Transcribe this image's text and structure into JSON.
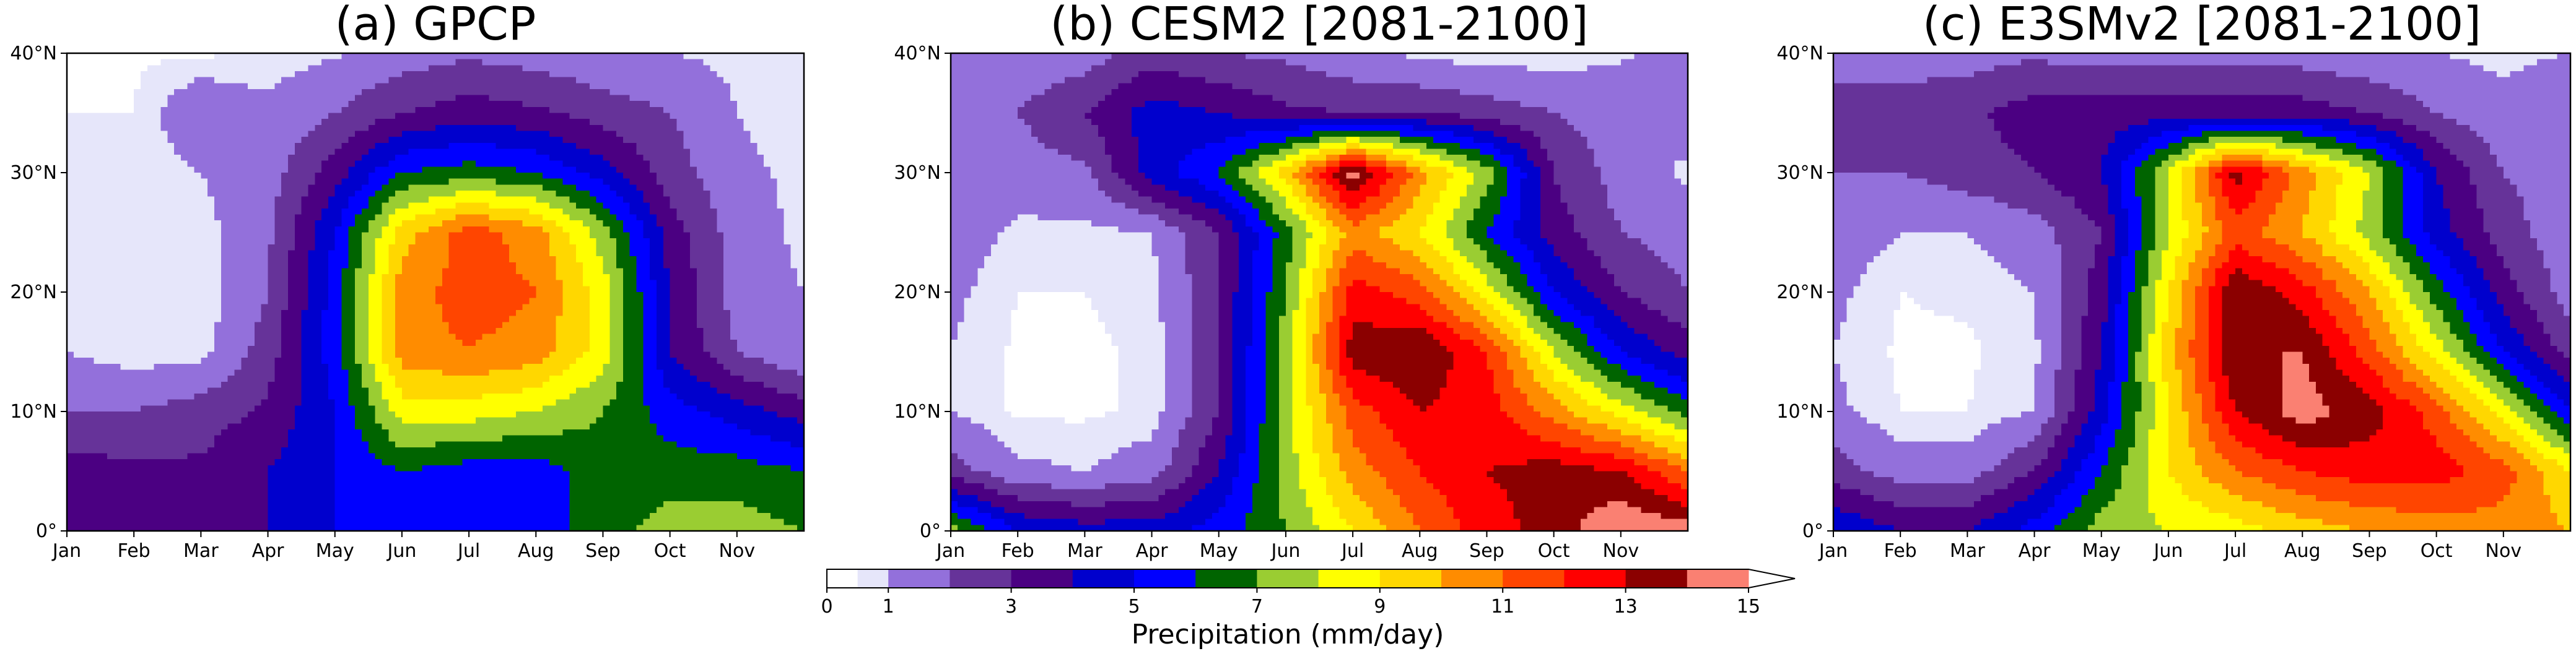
{
  "colorbar": {
    "label": "Precipitation (mm/day)",
    "levels": [
      0,
      0.5,
      1,
      2,
      3,
      4,
      5,
      6,
      7,
      8,
      9,
      10,
      11,
      12,
      13,
      14,
      15
    ],
    "tick_values": [
      0,
      1,
      3,
      5,
      7,
      9,
      11,
      13,
      15
    ],
    "tick_labels": [
      "0",
      "1",
      "3",
      "5",
      "7",
      "9",
      "11",
      "13",
      "15"
    ],
    "colors": [
      "#ffffff",
      "#e6e6fa",
      "#9370db",
      "#663399",
      "#4b0082",
      "#0000cd",
      "#0000ff",
      "#006400",
      "#9acd32",
      "#ffff00",
      "#ffd700",
      "#ff8c00",
      "#ff4500",
      "#ff0000",
      "#8b0000",
      "#fa8072"
    ],
    "extend": "max"
  },
  "chart_data": [
    {
      "type": "heatmap",
      "title": "(a) GPCP",
      "x_tick_labels": [
        "Jan",
        "Feb",
        "Mar",
        "Apr",
        "May",
        "Jun",
        "Jul",
        "Aug",
        "Sep",
        "Oct",
        "Nov"
      ],
      "y_tick_labels": [
        "0°",
        "10°N",
        "20°N",
        "30°N",
        "40°N"
      ],
      "y_tick_values": [
        0,
        10,
        20,
        30,
        40
      ],
      "xlim": [
        1,
        12
      ],
      "ylim": [
        0,
        40
      ],
      "months": [
        1,
        2,
        3,
        4,
        5,
        6,
        7,
        8,
        9,
        10,
        11,
        12
      ],
      "latitudes": [
        0,
        5,
        10,
        15,
        20,
        25,
        30,
        35,
        40
      ],
      "values": [
        [
          4.0,
          3.2,
          3.2,
          4.0,
          5.0,
          5.5,
          5.5,
          5.5,
          6.5,
          7.5,
          7.5,
          7.0
        ],
        [
          3.5,
          3.2,
          3.2,
          4.0,
          5.0,
          6.0,
          5.5,
          5.5,
          6.5,
          6.5,
          6.5,
          6.0
        ],
        [
          2.0,
          2.0,
          2.5,
          3.2,
          5.0,
          8.5,
          8.5,
          8.0,
          7.0,
          5.5,
          4.5,
          3.5
        ],
        [
          1.0,
          0.6,
          0.7,
          2.5,
          5.5,
          10.5,
          11.0,
          10.5,
          8.5,
          4.0,
          2.0,
          1.0
        ],
        [
          0.8,
          0.5,
          0.5,
          2.0,
          5.5,
          10.5,
          11.5,
          11.0,
          8.5,
          4.0,
          1.5,
          1.0
        ],
        [
          0.8,
          0.5,
          0.7,
          1.8,
          5.0,
          9.5,
          11.5,
          10.5,
          7.5,
          3.5,
          1.5,
          0.8
        ],
        [
          0.8,
          0.6,
          1.0,
          1.5,
          3.5,
          6.0,
          6.5,
          6.0,
          4.5,
          2.5,
          1.2,
          0.8
        ],
        [
          0.5,
          0.5,
          1.8,
          1.2,
          2.0,
          3.0,
          3.5,
          3.2,
          2.5,
          2.0,
          1.0,
          0.6
        ],
        [
          0.4,
          0.4,
          0.4,
          0.6,
          0.9,
          1.5,
          1.8,
          1.5,
          1.2,
          1.0,
          0.8,
          0.6
        ]
      ]
    },
    {
      "type": "heatmap",
      "title": "(b) CESM2 [2081-2100]",
      "x_tick_labels": [
        "Jan",
        "Feb",
        "Mar",
        "Apr",
        "May",
        "Jun",
        "Jul",
        "Aug",
        "Sep",
        "Oct",
        "Nov"
      ],
      "y_tick_labels": [
        "0°",
        "10°N",
        "20°N",
        "30°N",
        "40°N"
      ],
      "y_tick_values": [
        0,
        10,
        20,
        30,
        40
      ],
      "xlim": [
        1,
        12
      ],
      "ylim": [
        0,
        40
      ],
      "months": [
        1,
        2,
        3,
        4,
        5,
        6,
        7,
        8,
        9,
        10,
        11,
        12
      ],
      "latitudes": [
        0,
        5,
        10,
        15,
        20,
        25,
        30,
        35,
        40
      ],
      "values": [
        [
          7.5,
          5.0,
          4.5,
          4.5,
          5.5,
          7.0,
          9.0,
          11.0,
          12.5,
          13.5,
          15.0,
          14.5
        ],
        [
          2.5,
          1.2,
          1.0,
          1.5,
          4.0,
          7.5,
          10.5,
          12.0,
          13.0,
          13.5,
          13.0,
          11.0
        ],
        [
          1.0,
          0.4,
          0.4,
          0.6,
          3.0,
          7.5,
          11.5,
          13.0,
          12.5,
          10.5,
          8.5,
          6.5
        ],
        [
          1.0,
          0.4,
          0.4,
          0.6,
          3.0,
          7.5,
          13.5,
          14.0,
          12.0,
          8.0,
          5.0,
          3.5
        ],
        [
          1.2,
          0.5,
          0.5,
          0.7,
          3.0,
          7.0,
          12.5,
          11.5,
          8.5,
          5.0,
          3.0,
          2.0
        ],
        [
          1.5,
          0.8,
          0.8,
          1.0,
          3.0,
          6.5,
          10.5,
          9.0,
          6.0,
          3.5,
          2.0,
          1.5
        ],
        [
          2.0,
          1.5,
          1.8,
          4.5,
          6.0,
          9.5,
          14.5,
          10.5,
          7.5,
          3.0,
          1.5,
          0.8
        ],
        [
          2.0,
          2.0,
          3.0,
          4.5,
          4.0,
          3.2,
          3.0,
          3.0,
          2.5,
          2.0,
          1.5,
          1.5
        ],
        [
          1.5,
          1.2,
          1.5,
          2.5,
          2.0,
          1.8,
          1.2,
          0.8,
          0.6,
          0.6,
          0.9,
          1.2
        ]
      ]
    },
    {
      "type": "heatmap",
      "title": "(c) E3SMv2 [2081-2100]",
      "x_tick_labels": [
        "Jan",
        "Feb",
        "Mar",
        "Apr",
        "May",
        "Jun",
        "Jul",
        "Aug",
        "Sep",
        "Oct",
        "Nov"
      ],
      "y_tick_labels": [
        "0°",
        "10°N",
        "20°N",
        "30°N",
        "40°N"
      ],
      "y_tick_values": [
        0,
        10,
        20,
        30,
        40
      ],
      "xlim": [
        1,
        12
      ],
      "ylim": [
        0,
        40
      ],
      "months": [
        1,
        2,
        3,
        4,
        5,
        6,
        7,
        8,
        9,
        10,
        11,
        12
      ],
      "latitudes": [
        0,
        5,
        10,
        15,
        20,
        25,
        30,
        35,
        40
      ],
      "values": [
        [
          5.0,
          4.0,
          4.0,
          5.5,
          7.5,
          8.0,
          8.5,
          9.5,
          10.0,
          10.5,
          10.5,
          10.0
        ],
        [
          2.5,
          1.5,
          1.5,
          3.0,
          6.0,
          9.0,
          11.0,
          12.0,
          12.5,
          12.5,
          11.5,
          9.0
        ],
        [
          1.2,
          0.5,
          0.5,
          1.0,
          4.5,
          9.0,
          13.0,
          14.5,
          13.5,
          11.5,
          8.5,
          5.0
        ],
        [
          1.0,
          0.4,
          0.4,
          0.8,
          4.0,
          9.5,
          14.0,
          14.0,
          11.5,
          8.5,
          5.0,
          2.5
        ],
        [
          1.2,
          0.5,
          0.6,
          1.0,
          3.5,
          9.0,
          14.0,
          12.5,
          10.0,
          6.5,
          3.5,
          1.5
        ],
        [
          1.5,
          1.0,
          1.0,
          1.5,
          3.0,
          8.0,
          11.5,
          10.0,
          7.5,
          4.5,
          2.5,
          1.2
        ],
        [
          2.0,
          2.0,
          2.5,
          3.0,
          4.0,
          8.0,
          13.5,
          10.5,
          8.0,
          4.0,
          2.0,
          1.5
        ],
        [
          2.5,
          2.5,
          2.8,
          3.5,
          3.5,
          3.5,
          3.5,
          3.5,
          3.0,
          2.0,
          1.2,
          2.0
        ],
        [
          1.5,
          1.5,
          1.5,
          1.8,
          1.5,
          1.5,
          1.5,
          1.5,
          1.2,
          1.0,
          0.8,
          1.0
        ]
      ]
    }
  ]
}
